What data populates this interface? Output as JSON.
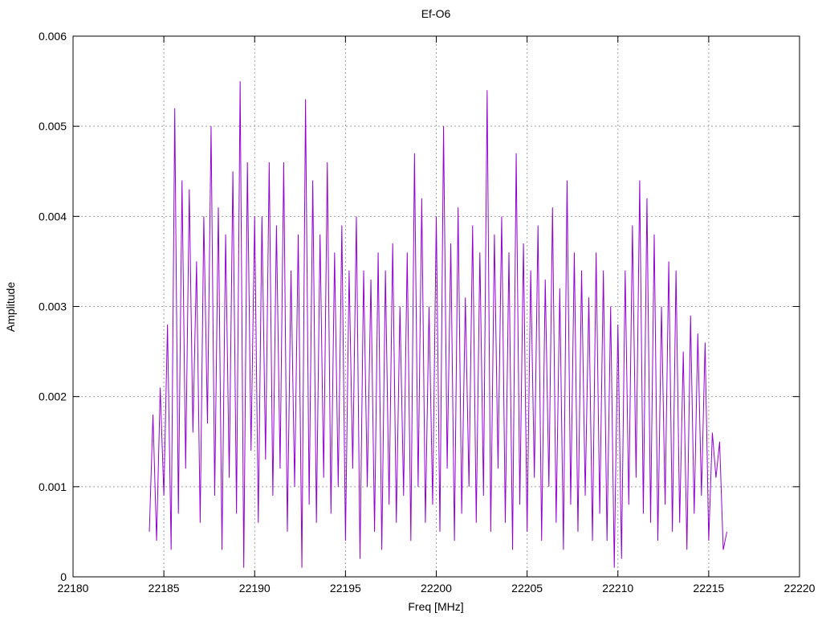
{
  "chart_data": {
    "type": "line",
    "title": "Ef-O6",
    "x_label": "Freq [MHz]",
    "y_label": "Amplitude",
    "color": "#9400d3",
    "grid": true,
    "xlim": [
      22180,
      22220
    ],
    "xticks": [
      22180,
      22185,
      22190,
      22195,
      22200,
      22205,
      22210,
      22215,
      22220
    ],
    "ylim": [
      0,
      0.006
    ],
    "yticks": [
      0,
      0.001,
      0.002,
      0.003,
      0.004,
      0.005,
      0.006
    ],
    "x": [
      22184.2,
      22184.4,
      22184.6,
      22184.8,
      22185.0,
      22185.2,
      22185.4,
      22185.6,
      22185.8,
      22186.0,
      22186.2,
      22186.4,
      22186.6,
      22186.8,
      22187.0,
      22187.2,
      22187.4,
      22187.6,
      22187.8,
      22188.0,
      22188.2,
      22188.4,
      22188.6,
      22188.8,
      22189.0,
      22189.2,
      22189.4,
      22189.6,
      22189.8,
      22190.0,
      22190.2,
      22190.4,
      22190.6,
      22190.8,
      22191.0,
      22191.2,
      22191.4,
      22191.6,
      22191.8,
      22192.0,
      22192.2,
      22192.4,
      22192.6,
      22192.8,
      22193.0,
      22193.2,
      22193.4,
      22193.6,
      22193.8,
      22194.0,
      22194.2,
      22194.4,
      22194.6,
      22194.8,
      22195.0,
      22195.2,
      22195.4,
      22195.6,
      22195.8,
      22196.0,
      22196.2,
      22196.4,
      22196.6,
      22196.8,
      22197.0,
      22197.2,
      22197.4,
      22197.6,
      22197.8,
      22198.0,
      22198.2,
      22198.4,
      22198.6,
      22198.8,
      22199.0,
      22199.2,
      22199.4,
      22199.6,
      22199.8,
      22200.0,
      22200.2,
      22200.4,
      22200.6,
      22200.8,
      22201.0,
      22201.2,
      22201.4,
      22201.6,
      22201.8,
      22202.0,
      22202.2,
      22202.4,
      22202.6,
      22202.8,
      22203.0,
      22203.2,
      22203.4,
      22203.6,
      22203.8,
      22204.0,
      22204.2,
      22204.4,
      22204.6,
      22204.8,
      22205.0,
      22205.2,
      22205.4,
      22205.6,
      22205.8,
      22206.0,
      22206.2,
      22206.4,
      22206.6,
      22206.8,
      22207.0,
      22207.2,
      22207.4,
      22207.6,
      22207.8,
      22208.0,
      22208.2,
      22208.4,
      22208.6,
      22208.8,
      22209.0,
      22209.2,
      22209.4,
      22209.6,
      22209.8,
      22210.0,
      22210.2,
      22210.4,
      22210.6,
      22210.8,
      22211.0,
      22211.2,
      22211.4,
      22211.6,
      22211.8,
      22212.0,
      22212.2,
      22212.4,
      22212.6,
      22212.8,
      22213.0,
      22213.2,
      22213.4,
      22213.6,
      22213.8,
      22214.0,
      22214.2,
      22214.4,
      22214.6,
      22214.8,
      22215.0,
      22215.2,
      22215.4,
      22215.6,
      22215.8,
      22216.0
    ],
    "values": [
      0.0005,
      0.0018,
      0.0004,
      0.0021,
      0.0009,
      0.0028,
      0.0003,
      0.0052,
      0.0007,
      0.0044,
      0.0012,
      0.0043,
      0.0016,
      0.0035,
      0.0006,
      0.004,
      0.0017,
      0.005,
      0.0009,
      0.0041,
      0.0003,
      0.0038,
      0.0011,
      0.0045,
      0.0007,
      0.0055,
      0.0001,
      0.0046,
      0.0014,
      0.004,
      0.0006,
      0.004,
      0.0013,
      0.0046,
      0.0009,
      0.0039,
      0.0012,
      0.0046,
      0.0005,
      0.0034,
      0.001,
      0.0038,
      0.0001,
      0.0053,
      0.0008,
      0.0044,
      0.0006,
      0.0038,
      0.0011,
      0.0046,
      0.0007,
      0.0036,
      0.001,
      0.0039,
      0.0004,
      0.0034,
      0.0012,
      0.004,
      0.0002,
      0.0034,
      0.001,
      0.0033,
      0.0005,
      0.0036,
      0.0003,
      0.0034,
      0.0008,
      0.0037,
      0.0006,
      0.003,
      0.0009,
      0.0036,
      0.0004,
      0.0047,
      0.001,
      0.0042,
      0.0006,
      0.003,
      0.0008,
      0.004,
      0.0005,
      0.005,
      0.0012,
      0.0037,
      0.0004,
      0.0041,
      0.0007,
      0.0031,
      0.001,
      0.0039,
      0.0006,
      0.0036,
      0.0009,
      0.0054,
      0.0005,
      0.0038,
      0.0012,
      0.004,
      0.0006,
      0.0036,
      0.0003,
      0.0047,
      0.0008,
      0.0037,
      0.0005,
      0.0034,
      0.0011,
      0.0039,
      0.0004,
      0.0033,
      0.001,
      0.0041,
      0.0006,
      0.0032,
      0.0003,
      0.0044,
      0.0008,
      0.0036,
      0.0005,
      0.0034,
      0.0009,
      0.0031,
      0.0004,
      0.0036,
      0.0007,
      0.0034,
      0.0004,
      0.003,
      0.0001,
      0.0028,
      0.0002,
      0.0034,
      0.0008,
      0.0039,
      0.0011,
      0.0044,
      0.0007,
      0.0042,
      0.0006,
      0.0038,
      0.0004,
      0.003,
      0.0008,
      0.0035,
      0.0005,
      0.0034,
      0.0006,
      0.0025,
      0.0003,
      0.0029,
      0.0007,
      0.0027,
      0.0009,
      0.0026,
      0.0004,
      0.0016,
      0.0011,
      0.0015,
      0.0003,
      0.0005
    ]
  }
}
